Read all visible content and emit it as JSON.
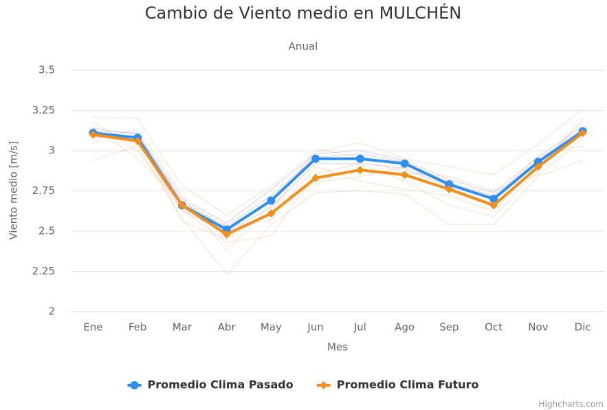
{
  "chart_data": {
    "type": "line",
    "title": "Cambio de Viento medio en MULCHÉN",
    "subtitle": "Anual",
    "y_label": "Viento medio [m/s]",
    "x_label": "Mes",
    "credits": "Highcharts.com",
    "categories": [
      "Ene",
      "Feb",
      "Mar",
      "Abr",
      "May",
      "Jun",
      "Jul",
      "Ago",
      "Sep",
      "Oct",
      "Nov",
      "Dic"
    ],
    "ylim": [
      2,
      3.5
    ],
    "yticks": [
      2,
      2.25,
      2.5,
      2.75,
      3,
      3.25,
      3.5
    ],
    "grid": true,
    "legend": "bottom",
    "series": [
      {
        "color": "rgba(140,120,220,0.35)",
        "lineWidth": 1,
        "values": [
          3.14,
          3.1,
          2.7,
          2.55,
          2.76,
          2.98,
          3.0,
          2.94,
          2.82,
          2.74,
          2.96,
          3.15
        ]
      },
      {
        "color": "rgba(140,120,220,0.35)",
        "lineWidth": 1,
        "values": [
          3.09,
          3.06,
          2.63,
          2.49,
          2.65,
          2.92,
          2.92,
          2.89,
          2.77,
          2.67,
          2.9,
          3.1
        ]
      },
      {
        "color": "rgba(140,120,220,0.35)",
        "lineWidth": 1,
        "values": [
          3.12,
          3.11,
          2.68,
          2.53,
          2.72,
          2.96,
          2.98,
          2.93,
          2.8,
          2.72,
          2.94,
          3.14
        ]
      },
      {
        "color": "rgba(245,160,80,0.3)",
        "lineWidth": 1,
        "values": [
          3.21,
          3.2,
          2.78,
          2.6,
          2.78,
          2.99,
          3.05,
          2.95,
          2.9,
          2.85,
          3.04,
          3.26
        ]
      },
      {
        "color": "rgba(245,160,80,0.3)",
        "lineWidth": 1,
        "values": [
          2.94,
          3.03,
          2.58,
          2.23,
          2.54,
          2.74,
          2.75,
          2.73,
          2.54,
          2.54,
          2.84,
          2.94
        ]
      },
      {
        "color": "rgba(245,160,80,0.3)",
        "lineWidth": 1,
        "values": [
          3.18,
          3.0,
          2.63,
          2.43,
          2.47,
          2.86,
          2.92,
          2.81,
          2.66,
          2.59,
          2.88,
          3.2
        ]
      },
      {
        "color": "rgba(245,160,80,0.3)",
        "lineWidth": 1,
        "values": [
          3.05,
          3.14,
          2.72,
          2.38,
          2.66,
          2.8,
          2.84,
          2.9,
          2.78,
          2.7,
          2.97,
          3.03
        ]
      },
      {
        "color": "rgba(245,160,80,0.3)",
        "lineWidth": 1,
        "values": [
          3.15,
          2.95,
          2.68,
          2.52,
          2.57,
          2.9,
          2.81,
          2.76,
          2.72,
          2.62,
          2.92,
          3.18
        ]
      },
      {
        "color": "rgba(245,160,80,0.3)",
        "lineWidth": 1,
        "values": [
          3.08,
          3.09,
          2.56,
          2.45,
          2.62,
          3.01,
          2.96,
          2.86,
          2.84,
          2.75,
          2.85,
          3.07
        ]
      },
      {
        "name": "Promedio Clima Pasado",
        "color": "#2f8ff0",
        "lineWidth": 4,
        "marker": "circle",
        "values": [
          3.11,
          3.08,
          2.66,
          2.51,
          2.69,
          2.95,
          2.95,
          2.92,
          2.79,
          2.7,
          2.93,
          3.12
        ]
      },
      {
        "name": "Promedio Clima Futuro",
        "color": "#f28f1c",
        "lineWidth": 4,
        "marker": "diamond",
        "values": [
          3.1,
          3.06,
          2.66,
          2.48,
          2.61,
          2.83,
          2.88,
          2.85,
          2.76,
          2.66,
          2.9,
          3.11
        ]
      }
    ]
  }
}
